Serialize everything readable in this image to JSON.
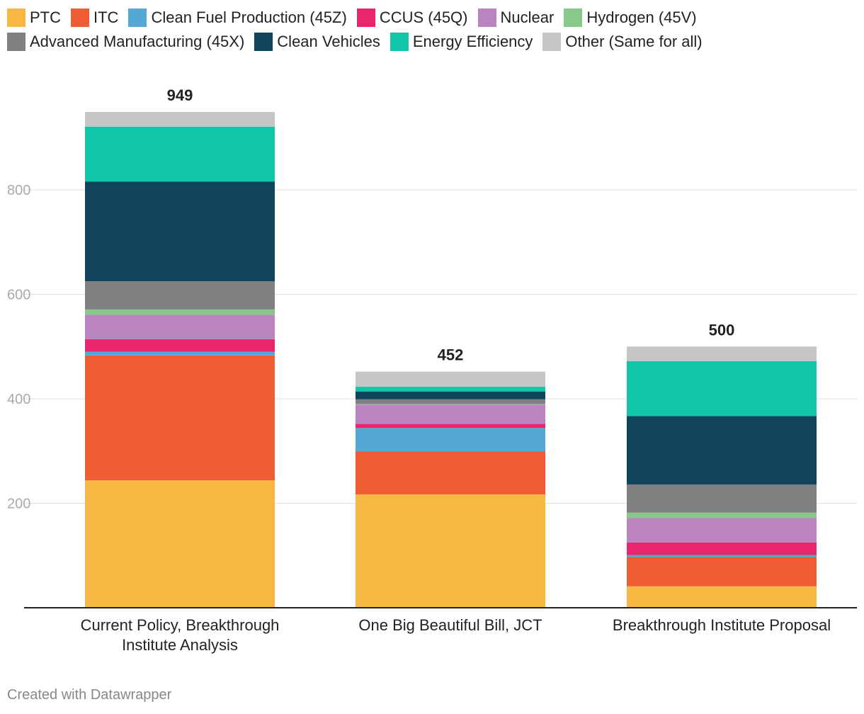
{
  "chart_data": {
    "type": "bar",
    "stacked": true,
    "title": "",
    "xlabel": "",
    "ylabel": "",
    "ylim": [
      0,
      950
    ],
    "yticks": [
      200,
      400,
      600,
      800
    ],
    "grid": true,
    "legend_position": "top",
    "categories": [
      [
        "Current Policy, Breakthrough",
        "Institute Analysis"
      ],
      [
        "One Big Beautiful Bill, JCT"
      ],
      [
        "Breakthrough Institute Proposal"
      ]
    ],
    "totals": [
      949,
      452,
      500
    ],
    "series": [
      {
        "name": "PTC",
        "color": "#f7b844",
        "values": [
          244,
          217,
          41
        ]
      },
      {
        "name": "ITC",
        "color": "#ef5d35",
        "values": [
          239,
          82,
          56
        ]
      },
      {
        "name": "Clean Fuel Production (45Z)",
        "color": "#55a8d6",
        "values": [
          7,
          45,
          4
        ]
      },
      {
        "name": "CCUS (45Q)",
        "color": "#e8256d",
        "values": [
          24,
          8,
          24
        ]
      },
      {
        "name": "Nuclear",
        "color": "#bb83bf",
        "values": [
          47,
          37,
          47
        ]
      },
      {
        "name": "Hydrogen (45V)",
        "color": "#88c98b",
        "values": [
          10,
          1,
          10
        ]
      },
      {
        "name": "Advanced Manufacturing (45X)",
        "color": "#808080",
        "values": [
          54,
          9,
          54
        ]
      },
      {
        "name": "Clean Vehicles",
        "color": "#10445c",
        "values": [
          191,
          15,
          131
        ]
      },
      {
        "name": "Energy Efficiency",
        "color": "#10c5a8",
        "values": [
          105,
          9,
          105
        ]
      },
      {
        "name": "Other (Same for all)",
        "color": "#c6c6c6",
        "values": [
          28,
          29,
          28
        ]
      }
    ]
  },
  "footer": {
    "credit": "Created with Datawrapper"
  }
}
